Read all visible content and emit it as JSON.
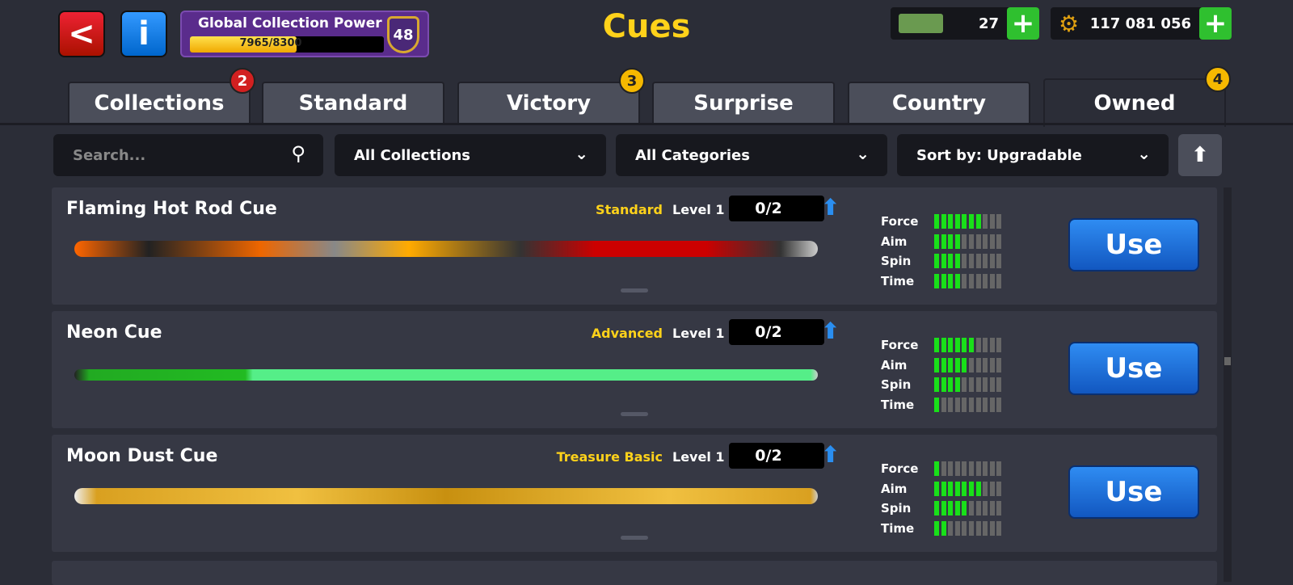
{
  "header": {
    "title": "Cues",
    "back_icon": "chevron-left-icon",
    "info_icon": "info-icon",
    "collection_power": {
      "label": "Global Collection Power",
      "value": "7965/8300",
      "fill_fraction": 0.55,
      "level": "48"
    },
    "cash": {
      "value": "27",
      "icon": "cash-icon"
    },
    "coins": {
      "value": "117 081 056",
      "icon": "coin-gear-icon"
    }
  },
  "tabs": [
    {
      "label": "Collections",
      "badge": "2",
      "badge_color": "#d22020"
    },
    {
      "label": "Standard"
    },
    {
      "label": "Victory",
      "badge": "3",
      "badge_color": "#f5b800"
    },
    {
      "label": "Surprise"
    },
    {
      "label": "Country"
    },
    {
      "label": "Owned",
      "badge": "4",
      "badge_color": "#f5b800",
      "active": true
    }
  ],
  "filters": {
    "search_placeholder": "Search...",
    "collections": "All Collections",
    "categories": "All Categories",
    "sort": "Sort by: Upgradable"
  },
  "stat_labels": [
    "Force",
    "Aim",
    "Spin",
    "Time"
  ],
  "cues": [
    {
      "name": "Flaming Hot Rod Cue",
      "rarity": "Standard",
      "level": "Level 1",
      "progress": "0/2",
      "stats": [
        7,
        4,
        4,
        4
      ],
      "use": "Use"
    },
    {
      "name": "Neon Cue",
      "rarity": "Advanced",
      "level": "Level 1",
      "progress": "0/2",
      "stats": [
        6,
        5,
        4,
        1
      ],
      "use": "Use"
    },
    {
      "name": "Moon Dust Cue",
      "rarity": "Treasure Basic",
      "level": "Level 1",
      "progress": "0/2",
      "stats": [
        1,
        7,
        5,
        2
      ],
      "use": "Use"
    }
  ],
  "stat_max": 10
}
